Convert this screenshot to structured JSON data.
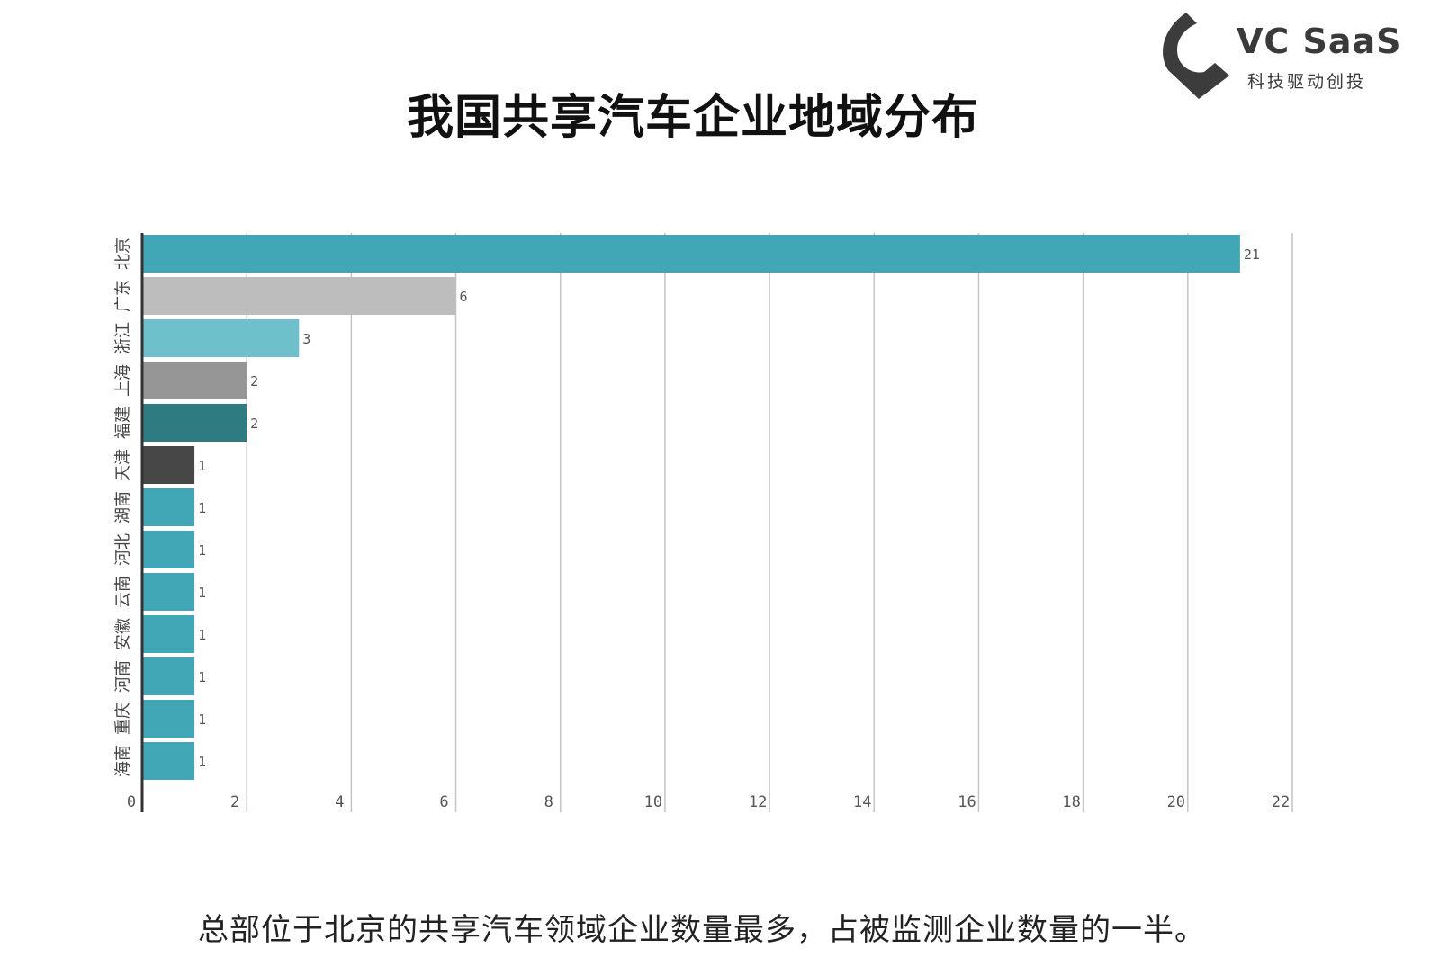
{
  "logo": {
    "name": "VC SaaS",
    "tagline": "科技驱动创投",
    "colors": {
      "mark": "#3c3c3c",
      "text": "#3a3a3a"
    }
  },
  "title": "我国共享汽车企业地域分布",
  "caption": "总部位于北京的共享汽车领域企业数量最多，占被监测企业数量的一半。",
  "chart_data": {
    "type": "bar",
    "orientation": "horizontal",
    "categories": [
      "北京",
      "广东",
      "浙江",
      "上海",
      "福建",
      "天津",
      "湖南",
      "河北",
      "云南",
      "安徽",
      "河南",
      "重庆",
      "海南"
    ],
    "values": [
      21,
      6,
      3,
      2,
      2,
      1,
      1,
      1,
      1,
      1,
      1,
      1,
      1
    ],
    "bar_colors": [
      "#41a6b5",
      "#bdbdbd",
      "#6ec1cb",
      "#969696",
      "#2f7b82",
      "#474747",
      "#41a6b5",
      "#41a6b5",
      "#41a6b5",
      "#41a6b5",
      "#41a6b5",
      "#41a6b5",
      "#41a6b5"
    ],
    "xlim": [
      0,
      22
    ],
    "x_ticks": [
      0,
      2,
      4,
      6,
      8,
      10,
      12,
      14,
      16,
      18,
      20,
      22
    ],
    "grid": true,
    "data_labels": true,
    "legend": "none"
  }
}
